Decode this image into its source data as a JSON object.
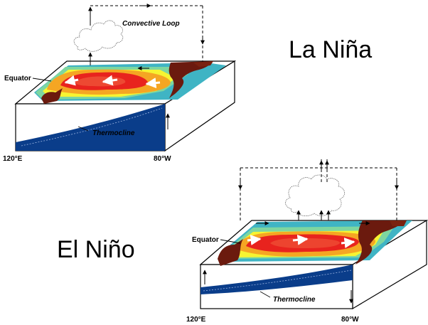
{
  "panels": {
    "la_nina": {
      "title": "La Niña",
      "loop_label": "Convective Loop",
      "equator_label": "Equator",
      "thermocline_label": "Thermocline",
      "west_label": "120°E",
      "east_label": "80°W"
    },
    "el_nino": {
      "title": "El Niño",
      "equator_label": "Equator",
      "thermocline_label": "Thermocline",
      "west_label": "120°E",
      "east_label": "80°W"
    }
  },
  "colors": {
    "warm_core": "#e8231e",
    "orange": "#f5a623",
    "yellow": "#f7f431",
    "green": "#7ed6a0",
    "cool": "#3fb4c4",
    "thermocline": "#0a3d8a",
    "land": "#6b1a0e"
  }
}
